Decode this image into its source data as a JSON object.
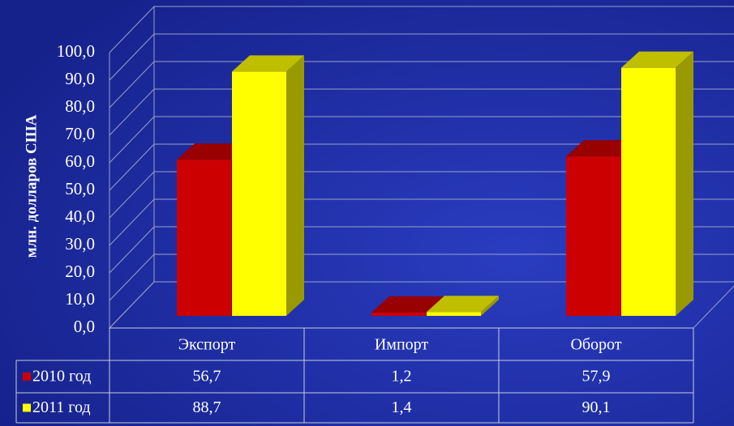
{
  "chart_data": {
    "type": "bar3d",
    "y_axis_label": "млн. долларов США",
    "categories": [
      "Экспорт",
      "Импорт",
      "Оборот"
    ],
    "series": [
      {
        "name": "2010 год",
        "color": "#cc0000",
        "values": [
          56.7,
          1.2,
          57.9
        ],
        "value_labels": [
          "56,7",
          "1,2",
          "57,9"
        ]
      },
      {
        "name": "2011 год",
        "color": "#ffff00",
        "values": [
          88.7,
          1.4,
          90.1
        ],
        "value_labels": [
          "88,7",
          "1,4",
          "90,1"
        ]
      }
    ],
    "ylim": [
      0,
      100
    ],
    "yticks": [
      {
        "value": 0,
        "label": "0,0"
      },
      {
        "value": 10,
        "label": "10,0"
      },
      {
        "value": 20,
        "label": "20,0"
      },
      {
        "value": 30,
        "label": "30,0"
      },
      {
        "value": 40,
        "label": "40,0"
      },
      {
        "value": 50,
        "label": "50,0"
      },
      {
        "value": 60,
        "label": "60,0"
      },
      {
        "value": 70,
        "label": "70,0"
      },
      {
        "value": 80,
        "label": "80,0"
      },
      {
        "value": 90,
        "label": "90,0"
      },
      {
        "value": 100,
        "label": "100,0"
      }
    ],
    "grid": true
  }
}
